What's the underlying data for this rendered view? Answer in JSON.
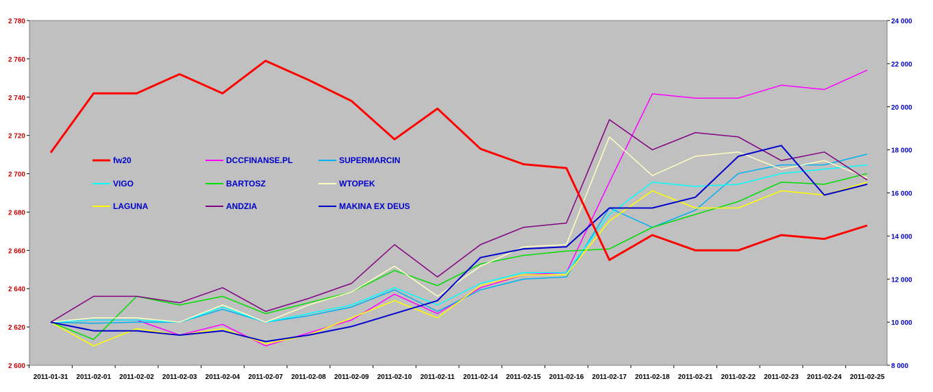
{
  "chart_data": {
    "type": "line",
    "grid": false,
    "legend_position": "inside-left",
    "plot_background": "#c0c0c0",
    "left_axis": {
      "ylim": [
        2600,
        2780
      ],
      "step": 20,
      "color": "#cc0000",
      "ticks": [
        "2 600",
        "2 620",
        "2 640",
        "2 660",
        "2 680",
        "2 700",
        "2 720",
        "2 740",
        "2 760",
        "2 780"
      ]
    },
    "right_axis": {
      "ylim": [
        8000,
        24000
      ],
      "step": 2000,
      "color": "#0000cc",
      "ticks": [
        "8 000",
        "10 000",
        "12 000",
        "14 000",
        "16 000",
        "18 000",
        "20 000",
        "22 000",
        "24 000"
      ]
    },
    "x": [
      "2011-01-31",
      "2011-02-01",
      "2011-02-02",
      "2011-02-03",
      "2011-02-04",
      "2011-02-07",
      "2011-02-08",
      "2011-02-09",
      "2011-02-10",
      "2011-02-11",
      "2011-02-14",
      "2011-02-15",
      "2011-02-16",
      "2011-02-17",
      "2011-02-18",
      "2011-02-21",
      "2011-02-22",
      "2011-02-23",
      "2011-02-24",
      "2011-02-25"
    ],
    "series": [
      {
        "name": "fw20",
        "axis": "left",
        "color": "#ff0000",
        "width": 3,
        "values": [
          2711,
          2742,
          2742,
          2752,
          2742,
          2759,
          2749,
          2738,
          2718,
          2734,
          2713,
          2705,
          2703,
          2655,
          2668,
          2660,
          2660,
          2668,
          2666,
          2673
        ]
      },
      {
        "name": "DCCFINANSE.PL",
        "axis": "right",
        "color": "#ff00ff",
        "width": 1.5,
        "values": [
          10000,
          10100,
          10100,
          9400,
          9900,
          8900,
          9500,
          10100,
          11300,
          10400,
          11600,
          12200,
          12300,
          16500,
          20600,
          20400,
          20400,
          21000,
          20800,
          21700
        ]
      },
      {
        "name": "SUPERMARCIN",
        "axis": "right",
        "color": "#00b0f0",
        "width": 1.5,
        "values": [
          10000,
          9950,
          10000,
          10000,
          10600,
          10000,
          10300,
          10700,
          11500,
          10500,
          11500,
          12000,
          12100,
          15300,
          14400,
          15200,
          16900,
          17300,
          17300,
          17800
        ]
      },
      {
        "name": "VIGO",
        "axis": "right",
        "color": "#00ffff",
        "width": 1.5,
        "values": [
          10000,
          10100,
          10100,
          10000,
          10700,
          10000,
          10400,
          10800,
          11600,
          10800,
          11800,
          12300,
          12300,
          15000,
          16500,
          16300,
          16400,
          16900,
          17100,
          17300
        ]
      },
      {
        "name": "BARTOSZ",
        "axis": "right",
        "color": "#00dd00",
        "width": 1.5,
        "values": [
          10000,
          9200,
          11200,
          10800,
          11200,
          10400,
          10900,
          11400,
          12400,
          11700,
          12700,
          13100,
          13300,
          13400,
          14400,
          15000,
          15600,
          16500,
          16400,
          16900
        ]
      },
      {
        "name": "WTOPEK",
        "axis": "right",
        "color": "#ffffc0",
        "width": 1.5,
        "values": [
          10000,
          10200,
          10200,
          10000,
          10800,
          10000,
          10800,
          11400,
          12600,
          11200,
          12600,
          13500,
          13600,
          18600,
          16800,
          17700,
          17900,
          17100,
          17500,
          16700
        ]
      },
      {
        "name": "LAGUNA",
        "axis": "right",
        "color": "#ffff00",
        "width": 1.5,
        "values": [
          10000,
          8900,
          9700,
          9400,
          9700,
          9000,
          9400,
          10200,
          11000,
          10200,
          11700,
          12200,
          12200,
          14700,
          16100,
          15300,
          15300,
          16100,
          15900,
          16500
        ]
      },
      {
        "name": "ANDZIA",
        "axis": "right",
        "color": "#800080",
        "width": 1.5,
        "values": [
          10000,
          11200,
          11200,
          10900,
          11600,
          10500,
          11100,
          11800,
          13600,
          12100,
          13600,
          14400,
          14600,
          19400,
          18000,
          18800,
          18600,
          17500,
          17900,
          16600
        ]
      },
      {
        "name": "MAKINA EX DEUS",
        "axis": "right",
        "color": "#0000cc",
        "width": 2,
        "values": [
          10000,
          9600,
          9600,
          9400,
          9600,
          9100,
          9400,
          9800,
          10400,
          11000,
          13000,
          13400,
          13500,
          15300,
          15300,
          15800,
          17700,
          18200,
          15900,
          16400
        ]
      }
    ]
  }
}
